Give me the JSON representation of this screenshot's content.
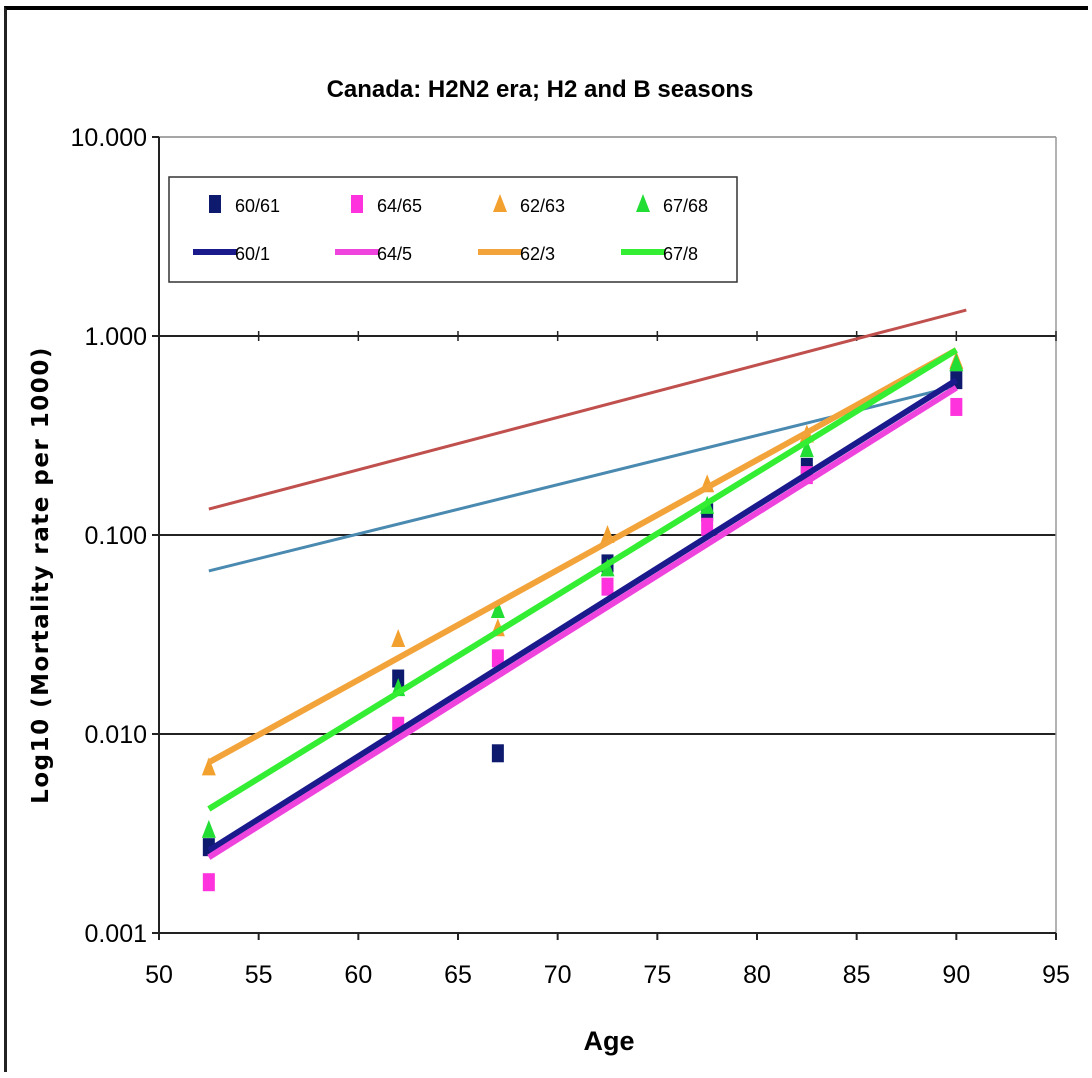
{
  "chart_data": {
    "type": "scatter",
    "title": "Canada: H2N2 era; H2 and B seasons",
    "xlabel": "Age",
    "ylabel": "Log10 (Mortality rate per 1000)",
    "xlim": [
      50,
      95
    ],
    "ylim": [
      0.001,
      10
    ],
    "yscale": "log",
    "x_ticks": [
      "50",
      "55",
      "60",
      "65",
      "70",
      "75",
      "80",
      "85",
      "90",
      "95"
    ],
    "y_ticks": [
      "0.001",
      "0.010",
      "0.100",
      "1.000",
      "10.000"
    ],
    "grid": "horizontal",
    "legend_position": "top-left",
    "points": [
      {
        "name": "60/61",
        "color": "#0d1a6e",
        "marker": "square",
        "x": [
          52.5,
          62,
          67,
          72.5,
          77.5,
          82.5,
          90
        ],
        "y": [
          0.0027,
          0.019,
          0.008,
          0.072,
          0.13,
          0.22,
          0.6
        ]
      },
      {
        "name": "64/65",
        "color": "#ff33dd",
        "marker": "square",
        "x": [
          52.5,
          62,
          67,
          72.5,
          77.5,
          82.5,
          90
        ],
        "y": [
          0.0018,
          0.011,
          0.024,
          0.055,
          0.11,
          0.2,
          0.44
        ]
      },
      {
        "name": "62/63",
        "color": "#f2a02e",
        "marker": "triangle",
        "x": [
          52.5,
          62,
          67,
          72.5,
          77.5,
          82.5,
          90
        ],
        "y": [
          0.0068,
          0.03,
          0.034,
          0.1,
          0.18,
          0.32,
          0.75
        ]
      },
      {
        "name": "67/68",
        "color": "#22dd33",
        "marker": "triangle",
        "x": [
          52.5,
          62,
          67,
          72.5,
          77.5,
          82.5,
          90
        ],
        "y": [
          0.0033,
          0.017,
          0.042,
          0.068,
          0.14,
          0.27,
          0.73
        ]
      }
    ],
    "lines": [
      {
        "name": "60/1",
        "color": "#1a1a8c",
        "x": [
          52.5,
          90
        ],
        "y": [
          0.0026,
          0.6
        ]
      },
      {
        "name": "64/5",
        "color": "#ee44dd",
        "x": [
          52.5,
          90
        ],
        "y": [
          0.0024,
          0.55
        ]
      },
      {
        "name": "62/3",
        "color": "#f2a33a",
        "x": [
          52.5,
          90
        ],
        "y": [
          0.0072,
          0.85
        ]
      },
      {
        "name": "67/8",
        "color": "#33ee33",
        "x": [
          52.5,
          90
        ],
        "y": [
          0.0042,
          0.85
        ]
      }
    ],
    "extra_lines": [
      {
        "color": "#c0504d",
        "x": [
          52.5,
          90.5
        ],
        "y": [
          0.135,
          1.35
        ]
      },
      {
        "color": "#4a8ab0",
        "x": [
          52.5,
          90
        ],
        "y": [
          0.066,
          0.56
        ]
      }
    ]
  }
}
